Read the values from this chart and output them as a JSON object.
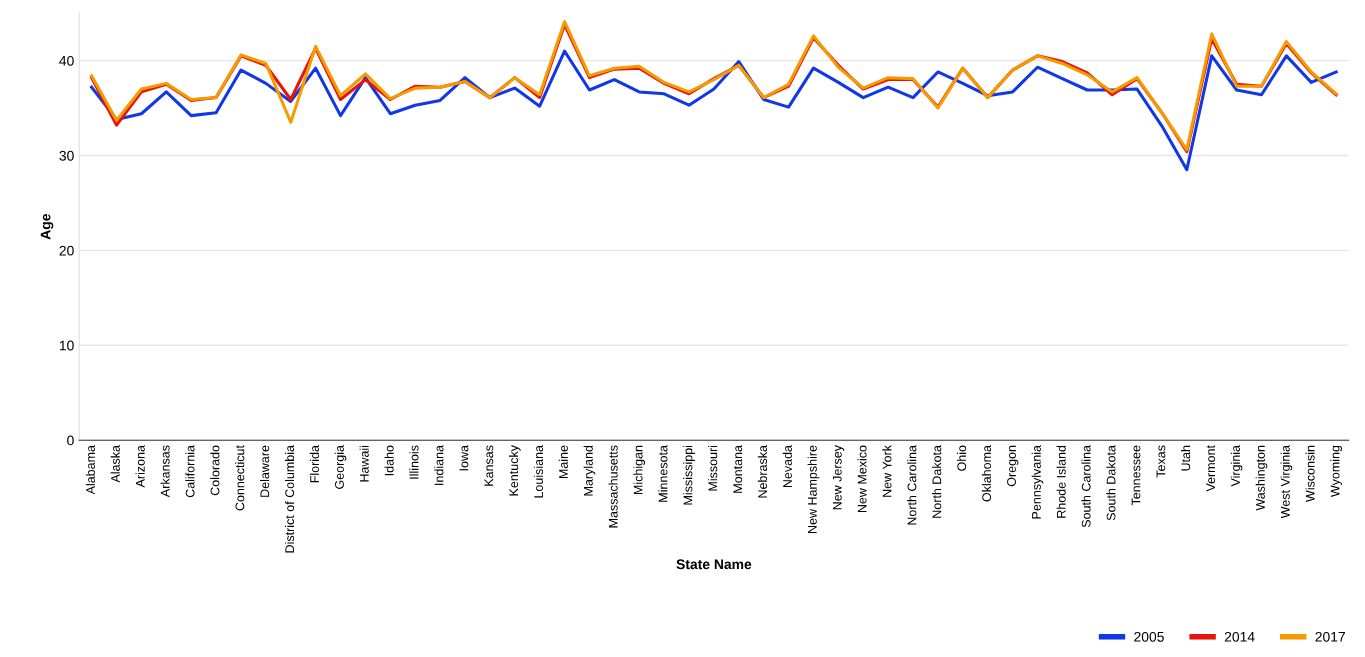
{
  "chart_data": {
    "type": "line",
    "xlabel": "State Name",
    "ylabel": "Age",
    "categories": [
      "Alabama",
      "Alaska",
      "Arizona",
      "Arkansas",
      "California",
      "Colorado",
      "Connecticut",
      "Delaware",
      "District of Columbia",
      "Florida",
      "Georgia",
      "Hawaii",
      "Idaho",
      "Illinois",
      "Indiana",
      "Iowa",
      "Kansas",
      "Kentucky",
      "Louisiana",
      "Maine",
      "Maryland",
      "Massachusetts",
      "Michigan",
      "Minnesota",
      "Mississippi",
      "Missouri",
      "Montana",
      "Nebraska",
      "Nevada",
      "New Hampshire",
      "New Jersey",
      "New Mexico",
      "New York",
      "North Carolina",
      "North Dakota",
      "Ohio",
      "Oklahoma",
      "Oregon",
      "Pennsylvania",
      "Rhode Island",
      "South Carolina",
      "South Dakota",
      "Tennessee",
      "Texas",
      "Utah",
      "Vermont",
      "Virginia",
      "Washington",
      "West Virginia",
      "Wisconsin",
      "Wyoming"
    ],
    "series": [
      {
        "name": "2005",
        "color": "#1038e8",
        "values": [
          37.2,
          33.8,
          34.4,
          36.7,
          34.2,
          34.5,
          39.0,
          37.6,
          35.7,
          39.2,
          34.2,
          38.2,
          34.4,
          35.3,
          35.8,
          38.2,
          36.1,
          37.1,
          35.2,
          41.0,
          36.9,
          38.0,
          36.7,
          36.5,
          35.3,
          37.0,
          39.9,
          35.9,
          35.1,
          39.2,
          37.7,
          36.1,
          37.2,
          36.1,
          38.8,
          37.6,
          36.3,
          36.7,
          39.3,
          38.1,
          36.9,
          36.9,
          37.0,
          33.1,
          28.5,
          40.5,
          36.9,
          36.4,
          40.5,
          37.7,
          38.8
        ]
      },
      {
        "name": "2014",
        "color": "#e8140c",
        "values": [
          38.2,
          33.2,
          36.7,
          37.5,
          35.8,
          36.1,
          40.5,
          39.5,
          35.9,
          41.3,
          35.9,
          38.0,
          35.9,
          37.3,
          37.2,
          37.8,
          36.1,
          38.2,
          36.1,
          43.8,
          38.2,
          39.1,
          39.2,
          37.6,
          36.5,
          38.1,
          39.5,
          36.1,
          37.3,
          42.4,
          39.5,
          37.0,
          38.0,
          38.0,
          35.1,
          39.2,
          36.1,
          39.0,
          40.5,
          39.9,
          38.7,
          36.4,
          38.1,
          34.5,
          30.4,
          42.3,
          37.5,
          37.3,
          41.8,
          38.7,
          36.4
        ]
      },
      {
        "name": "2017",
        "color": "#f59a00",
        "values": [
          38.4,
          33.7,
          37.0,
          37.6,
          35.9,
          36.1,
          40.6,
          39.7,
          33.5,
          41.5,
          36.3,
          38.6,
          36.0,
          37.1,
          37.2,
          37.8,
          36.1,
          38.2,
          36.4,
          44.1,
          38.4,
          39.2,
          39.4,
          37.7,
          36.7,
          38.0,
          39.5,
          36.1,
          37.5,
          42.6,
          39.3,
          37.1,
          38.2,
          38.1,
          35.0,
          39.2,
          36.1,
          39.0,
          40.5,
          39.7,
          38.5,
          36.7,
          38.2,
          34.5,
          30.6,
          42.8,
          37.3,
          37.3,
          42.0,
          38.8,
          36.5
        ]
      }
    ],
    "ylim": [
      0,
      45
    ],
    "yticks": [
      0,
      10,
      20,
      30,
      40
    ],
    "grid": "y",
    "legend": "bottom right",
    "marker": "none",
    "line_style": "solid"
  }
}
